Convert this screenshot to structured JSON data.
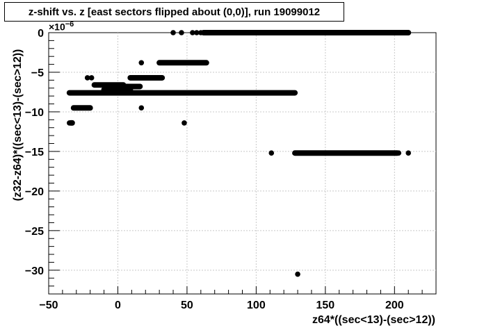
{
  "chart_data": {
    "type": "scatter",
    "title": "z-shift vs. z [east sectors flipped about (0,0)], run 19099012",
    "xlabel": "z64*((sec<13)-(sec>12))",
    "ylabel": "(z32-z64)*((sec<13)-(sec>12))",
    "y_multiplier_base": "×10",
    "y_multiplier_exp": "−6",
    "xlim": [
      -50,
      230
    ],
    "ylim": [
      -33,
      0
    ],
    "grid": true,
    "x_ticks": [
      -50,
      0,
      50,
      100,
      150,
      200
    ],
    "x_tick_labels": [
      "−50",
      "0",
      "50",
      "100",
      "150",
      "200"
    ],
    "y_ticks": [
      0,
      -5,
      -10,
      -15,
      -20,
      -25,
      -30
    ],
    "y_tick_labels": [
      "0",
      "−5",
      "−10",
      "−15",
      "−20",
      "−25",
      "−30"
    ],
    "segments": [
      {
        "x": [
          -35,
          128
        ],
        "y": -7.6
      },
      {
        "x": [
          -32,
          -20
        ],
        "y": -9.5
      },
      {
        "x": [
          -34,
          -33
        ],
        "y": -11.4
      },
      {
        "x": [
          -17,
          4
        ],
        "y": -6.6
      },
      {
        "x": [
          -10,
          9
        ],
        "y": -7.2
      },
      {
        "x": [
          -4,
          16
        ],
        "y": -6.8
      },
      {
        "x": [
          9,
          32
        ],
        "y": -5.7
      },
      {
        "x": [
          30,
          64
        ],
        "y": -3.8
      },
      {
        "x": [
          62,
          210
        ],
        "y": 0
      },
      {
        "x": [
          128,
          202
        ],
        "y": -15.2
      }
    ],
    "points": [
      {
        "x": -35,
        "y": -11.4
      },
      {
        "x": -22,
        "y": -5.7
      },
      {
        "x": -19,
        "y": -5.7
      },
      {
        "x": 17,
        "y": -3.8
      },
      {
        "x": 17,
        "y": -9.5
      },
      {
        "x": 48,
        "y": -11.4
      },
      {
        "x": 40,
        "y": 0
      },
      {
        "x": 46,
        "y": 0
      },
      {
        "x": 54,
        "y": 0
      },
      {
        "x": 57,
        "y": 0
      },
      {
        "x": 60,
        "y": 0
      },
      {
        "x": 111,
        "y": -15.2
      },
      {
        "x": 203,
        "y": -15.2
      },
      {
        "x": 210,
        "y": -15.2
      },
      {
        "x": 130,
        "y": -30.5
      },
      {
        "x": 203,
        "y": 0
      },
      {
        "x": 208,
        "y": 0
      }
    ],
    "marker_color": "#000000"
  }
}
